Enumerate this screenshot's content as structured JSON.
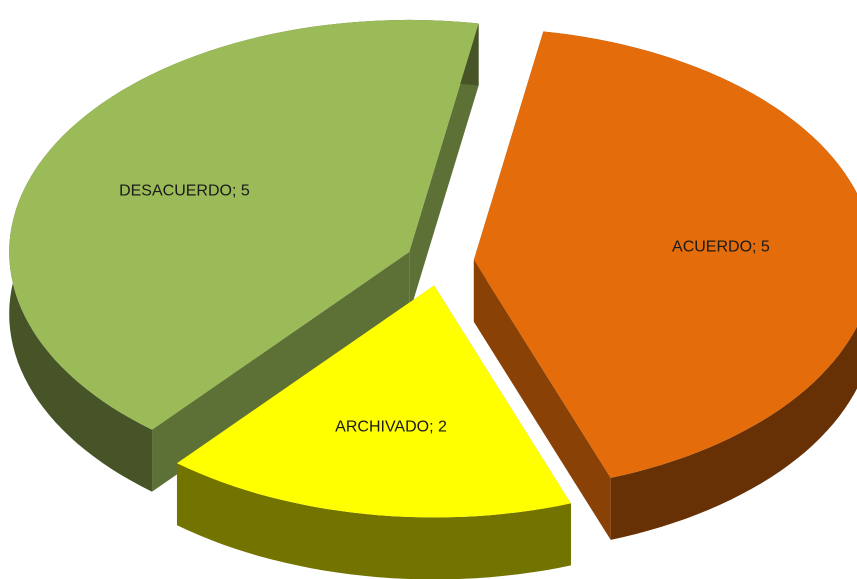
{
  "chart_data": {
    "type": "pie3d",
    "values": [
      5,
      2,
      5
    ],
    "value_labels": [
      "ACUERDO; 5",
      "ARCHIVADO; 2",
      "DESACUERDO; 5"
    ],
    "colors": [
      "#e46c0a",
      "#ffff00",
      "#9bbb59"
    ]
  }
}
